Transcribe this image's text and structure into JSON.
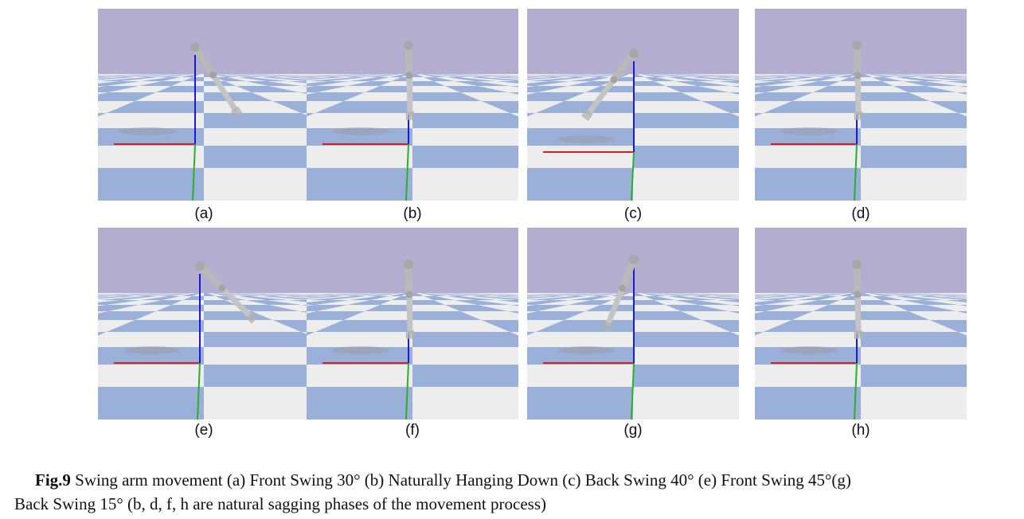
{
  "figure": {
    "panels": [
      {
        "label": "(a)",
        "pose": "front-swing-30"
      },
      {
        "label": "(b)",
        "pose": "hanging"
      },
      {
        "label": "(c)",
        "pose": "back-swing-40"
      },
      {
        "label": "(d)",
        "pose": "hanging"
      },
      {
        "label": "(e)",
        "pose": "front-swing-45"
      },
      {
        "label": "(f)",
        "pose": "hanging"
      },
      {
        "label": "(g)",
        "pose": "back-swing-15"
      },
      {
        "label": "(h)",
        "pose": "hanging"
      }
    ],
    "colors": {
      "sky": "#b3aed0",
      "tile_blue": "#9bb0d8",
      "tile_white": "#ededee",
      "arm": "#b9b9b9",
      "axis_x": "#d62020",
      "axis_y": "#2ab02a",
      "axis_z": "#1a1adc"
    }
  },
  "caption": {
    "lead": "Fig.9",
    "line1": " Swing arm movement (a) Front Swing 30° (b) Naturally Hanging Down (c) Back Swing 40° (e) Front Swing 45°(g)",
    "line2": "Back Swing 15° (b, d, f, h are natural sagging phases of the movement process)"
  }
}
